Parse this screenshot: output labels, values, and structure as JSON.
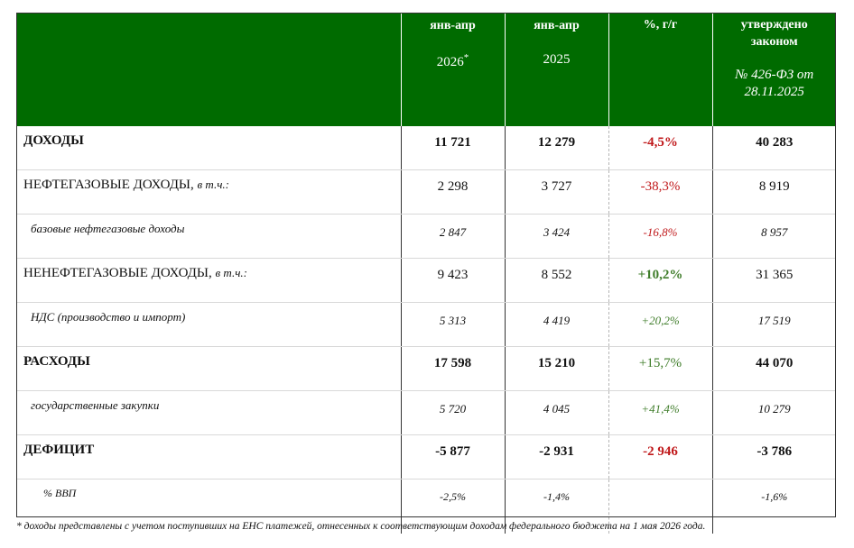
{
  "header": {
    "col1_line1": "янв-апр",
    "col1_year": "2026",
    "col1_mark": "*",
    "col2_line1": "янв-апр",
    "col2_year": "2025",
    "col3": "%, г/г",
    "col4_line1": "утверждено",
    "col4_line2": "законом",
    "col4_line3": "№ 426-ФЗ от",
    "col4_line4": "28.11.2025"
  },
  "rows": [
    {
      "label": "ДОХОДЫ",
      "note": "",
      "v2026": "11 721",
      "v2025": "12 279",
      "pct": "-4,5%",
      "law": "40 283",
      "pct_sign": "neg"
    },
    {
      "label": "НЕФТЕГАЗОВЫЕ ДОХОДЫ,",
      "note": "в т.ч.:",
      "v2026": "2 298",
      "v2025": "3 727",
      "pct": "-38,3%",
      "law": "8 919",
      "pct_sign": "neg"
    },
    {
      "label": "базовые нефтегазовые доходы",
      "note": "",
      "v2026": "2 847",
      "v2025": "3 424",
      "pct": "-16,8%",
      "law": "8 957",
      "pct_sign": "neg"
    },
    {
      "label": "НЕНЕФТЕГАЗОВЫЕ ДОХОДЫ,",
      "note": "в т.ч.:",
      "v2026": "9 423",
      "v2025": "8 552",
      "pct": "+10,2%",
      "law": "31 365",
      "pct_sign": "pos"
    },
    {
      "label": "НДС (производство и импорт)",
      "note": "",
      "v2026": "5 313",
      "v2025": "4 419",
      "pct": "+20,2%",
      "law": "17 519",
      "pct_sign": "pos"
    },
    {
      "label": "РАСХОДЫ",
      "note": "",
      "v2026": "17 598",
      "v2025": "15 210",
      "pct": "+15,7%",
      "law": "44 070",
      "pct_sign": "pos"
    },
    {
      "label": "государственные закупки",
      "note": "",
      "v2026": "5 720",
      "v2025": "4 045",
      "pct": "+41,4%",
      "law": "10 279",
      "pct_sign": "pos"
    },
    {
      "label": "ДЕФИЦИТ",
      "note": "",
      "v2026": "-5 877",
      "v2025": "-2 931",
      "pct": "-2 946",
      "law": "-3 786",
      "pct_sign": "neg"
    },
    {
      "label": "% ВВП",
      "note": "",
      "v2026": "-2,5%",
      "v2025": "-1,4%",
      "pct": "",
      "law": "-1,6%",
      "pct_sign": ""
    }
  ],
  "colors": {
    "header_bg": "#006b00",
    "negative": "#c0191b",
    "positive": "#3f7d2a"
  },
  "footnote": "* доходы представлены с учетом поступивших на ЕНС платежей, отнесенных к соответствующим доходам федерального бюджета на 1 мая 2026 года."
}
